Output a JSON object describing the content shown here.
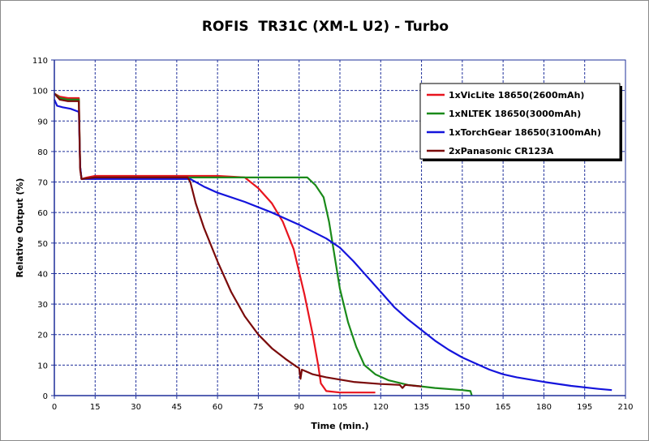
{
  "chart_data": {
    "type": "line",
    "title": "ROFIS  TR31C (XM-L U2) - Turbo",
    "xlabel": "Time (min.)",
    "ylabel": "Relative Output (%)",
    "xlim": [
      0,
      210
    ],
    "ylim": [
      0,
      110
    ],
    "xticks": [
      0,
      15,
      30,
      45,
      60,
      75,
      90,
      105,
      120,
      135,
      150,
      165,
      180,
      195,
      210
    ],
    "yticks": [
      0,
      10,
      20,
      30,
      40,
      50,
      60,
      70,
      80,
      90,
      100,
      110
    ],
    "grid": true,
    "legend_position": "top-right",
    "series": [
      {
        "name": "1xVicLite 18650(2600mAh)",
        "color": "#e8141e",
        "points": [
          [
            0,
            99
          ],
          [
            2,
            98
          ],
          [
            5,
            97.5
          ],
          [
            9,
            97.5
          ],
          [
            9.5,
            75
          ],
          [
            10,
            71
          ],
          [
            12,
            71.5
          ],
          [
            15,
            72
          ],
          [
            30,
            72
          ],
          [
            45,
            72
          ],
          [
            60,
            72
          ],
          [
            70,
            71.5
          ],
          [
            75,
            68
          ],
          [
            80,
            63
          ],
          [
            84,
            57
          ],
          [
            88,
            48
          ],
          [
            92,
            33
          ],
          [
            95,
            20
          ],
          [
            97,
            10
          ],
          [
            98,
            4
          ],
          [
            100,
            1.5
          ],
          [
            105,
            1
          ],
          [
            110,
            1
          ],
          [
            118,
            1
          ]
        ]
      },
      {
        "name": "1xNLTEK 18650(3000mAh)",
        "color": "#1a8a1a",
        "points": [
          [
            0,
            99
          ],
          [
            2,
            97.5
          ],
          [
            5,
            97
          ],
          [
            9,
            97
          ],
          [
            9.5,
            75
          ],
          [
            10,
            71
          ],
          [
            15,
            71.5
          ],
          [
            30,
            71.5
          ],
          [
            45,
            71.5
          ],
          [
            60,
            71.5
          ],
          [
            75,
            71.5
          ],
          [
            90,
            71.5
          ],
          [
            93,
            71.5
          ],
          [
            96,
            69
          ],
          [
            99,
            65
          ],
          [
            101,
            57
          ],
          [
            103,
            46
          ],
          [
            105,
            35
          ],
          [
            108,
            24
          ],
          [
            111,
            16
          ],
          [
            114,
            10
          ],
          [
            118,
            7
          ],
          [
            123,
            5
          ],
          [
            130,
            3.5
          ],
          [
            140,
            2.5
          ],
          [
            150,
            1.8
          ],
          [
            153,
            1.5
          ],
          [
            153.5,
            0
          ]
        ]
      },
      {
        "name": "1xTorchGear 18650(3100mAh)",
        "color": "#1414dc",
        "points": [
          [
            0,
            97
          ],
          [
            1,
            95
          ],
          [
            3,
            94.5
          ],
          [
            6,
            94
          ],
          [
            9,
            93
          ],
          [
            9.5,
            75
          ],
          [
            10,
            71
          ],
          [
            15,
            71
          ],
          [
            30,
            71
          ],
          [
            45,
            71
          ],
          [
            50,
            71
          ],
          [
            55,
            68.5
          ],
          [
            60,
            66.5
          ],
          [
            70,
            63.5
          ],
          [
            80,
            60
          ],
          [
            90,
            56
          ],
          [
            100,
            51.5
          ],
          [
            105,
            48.5
          ],
          [
            110,
            44
          ],
          [
            115,
            39
          ],
          [
            120,
            34
          ],
          [
            125,
            29
          ],
          [
            130,
            25
          ],
          [
            135,
            21.5
          ],
          [
            140,
            18
          ],
          [
            145,
            15
          ],
          [
            150,
            12.5
          ],
          [
            155,
            10.5
          ],
          [
            160,
            8.5
          ],
          [
            165,
            7
          ],
          [
            170,
            6
          ],
          [
            180,
            4.5
          ],
          [
            190,
            3.2
          ],
          [
            200,
            2.2
          ],
          [
            205,
            1.8
          ]
        ]
      },
      {
        "name": "2xPanasonic CR123A",
        "color": "#7a0a0a",
        "points": [
          [
            0,
            99
          ],
          [
            2,
            97
          ],
          [
            5,
            96.5
          ],
          [
            9,
            96.5
          ],
          [
            9.5,
            74
          ],
          [
            10,
            71
          ],
          [
            15,
            71.5
          ],
          [
            30,
            71.5
          ],
          [
            45,
            71.5
          ],
          [
            49,
            71.5
          ],
          [
            50,
            70
          ],
          [
            52,
            63
          ],
          [
            55,
            55
          ],
          [
            60,
            44
          ],
          [
            65,
            34
          ],
          [
            70,
            26
          ],
          [
            75,
            20
          ],
          [
            80,
            15.5
          ],
          [
            85,
            12
          ],
          [
            89,
            9.5
          ],
          [
            90,
            9
          ],
          [
            90.5,
            5.5
          ],
          [
            91,
            8.5
          ],
          [
            95,
            7
          ],
          [
            100,
            6
          ],
          [
            110,
            4.5
          ],
          [
            120,
            3.8
          ],
          [
            127,
            3.5
          ],
          [
            128,
            2.5
          ],
          [
            129,
            3.5
          ],
          [
            135,
            3
          ]
        ]
      }
    ]
  }
}
